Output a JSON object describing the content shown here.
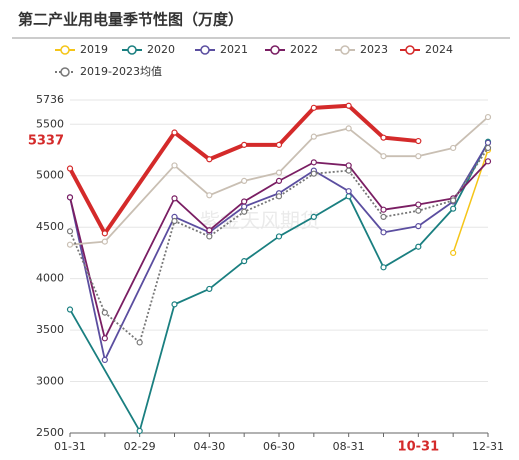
{
  "chart_data": {
    "type": "line",
    "title": "第二产业用电量季节性图（万度）",
    "watermark": "紫金天风期货",
    "categories": [
      "01-31",
      null,
      "02-29",
      null,
      "04-30",
      null,
      "06-30",
      null,
      "08-31",
      null,
      "10-31",
      null,
      "12-31"
    ],
    "ylim": [
      2500,
      5736
    ],
    "yticks": [
      2500,
      3000,
      3500,
      4000,
      4500,
      5000,
      5500,
      5736
    ],
    "y_highlight": 5337,
    "x_highlight_index": 10,
    "highlight_color": "#d42a2a",
    "grid": true,
    "connect_nulls": true,
    "legend": "top",
    "series": [
      {
        "name": "2019",
        "color": "#f5c518",
        "width": 1.5,
        "values": [
          null,
          null,
          null,
          null,
          null,
          null,
          null,
          null,
          null,
          null,
          null,
          4250,
          5250
        ]
      },
      {
        "name": "2020",
        "color": "#1a7f80",
        "width": 1.8,
        "values": [
          3700,
          null,
          2520,
          3750,
          3900,
          4170,
          4410,
          4600,
          4800,
          4110,
          4310,
          4680,
          5330
        ]
      },
      {
        "name": "2021",
        "color": "#5b4ea0",
        "width": 1.8,
        "values": [
          4790,
          3210,
          null,
          4600,
          4450,
          4700,
          4830,
          5050,
          4850,
          4450,
          4510,
          4750,
          5320
        ]
      },
      {
        "name": "2022",
        "color": "#7a1e63",
        "width": 1.8,
        "values": [
          4790,
          3420,
          null,
          4780,
          4470,
          4750,
          4950,
          5130,
          5100,
          4670,
          4720,
          4780,
          5140
        ]
      },
      {
        "name": "2023",
        "color": "#c9bfb3",
        "width": 1.8,
        "values": [
          4330,
          4360,
          null,
          5100,
          4810,
          4950,
          5030,
          5380,
          5460,
          5190,
          5190,
          5270,
          5570
        ]
      },
      {
        "name": "2024",
        "color": "#d42a2a",
        "width": 4,
        "values": [
          5070,
          4440,
          null,
          5420,
          5160,
          5300,
          5300,
          5660,
          5680,
          5370,
          5337,
          null,
          null
        ]
      },
      {
        "name": "2019-2023均值",
        "color": "#777777",
        "width": 1.8,
        "dash": true,
        "values": [
          4460,
          3670,
          3380,
          4560,
          4410,
          4650,
          4800,
          5020,
          5050,
          4600,
          4660,
          4760,
          5270
        ]
      }
    ]
  }
}
